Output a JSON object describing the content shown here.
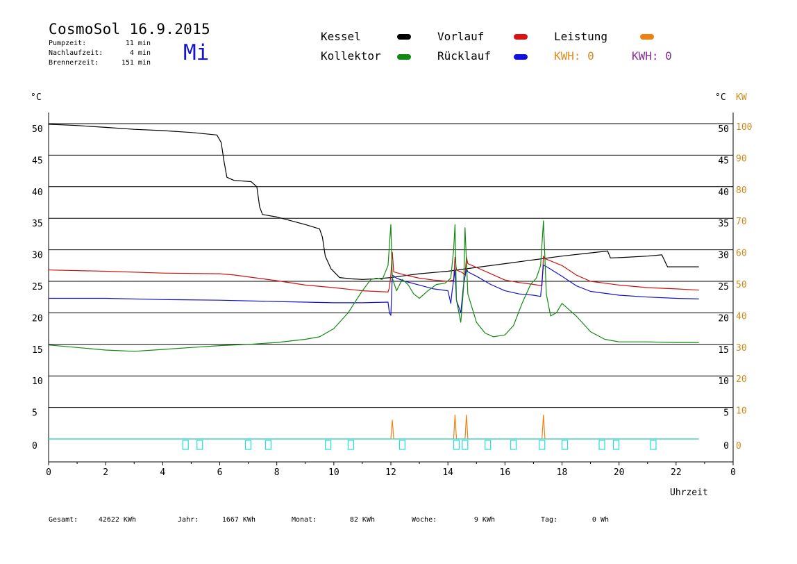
{
  "header": {
    "title": "CosmoSol 16.9.2015",
    "weekday": "Mi",
    "info": [
      {
        "label": "Pumpzeit:",
        "value": "11 min"
      },
      {
        "label": "Nachlaufzeit:",
        "value": "4 min"
      },
      {
        "label": "Brennerzeit:",
        "value": "151 min"
      }
    ]
  },
  "legend": [
    {
      "label": "Kessel",
      "color": "#000000"
    },
    {
      "label": "Vorlauf",
      "color": "#dd1111"
    },
    {
      "label": "Leistung",
      "color": "#f08010"
    },
    {
      "label": "Kollektor",
      "color": "#118811"
    },
    {
      "label": "Rücklauf",
      "color": "#1111dd"
    },
    {
      "label": "KWH: 0",
      "color": "#e08a1a"
    },
    {
      "label": "KWH: 0",
      "color": "#8a2a9a"
    }
  ],
  "axes": {
    "left_unit": "°C",
    "right_unit_c": "°C",
    "right_unit_kw": "KW",
    "x_label": "Uhrzeit"
  },
  "footer": [
    {
      "label": "Gesamt:",
      "value": "42622 KWh"
    },
    {
      "label": "Jahr:",
      "value": "1667 KWh"
    },
    {
      "label": "Monat:",
      "value": "82 KWh"
    },
    {
      "label": "Woche:",
      "value": "9 KWh"
    },
    {
      "label": "Tag:",
      "value": "0 Wh"
    }
  ],
  "chart_data": {
    "type": "line",
    "xlim": [
      0,
      24
    ],
    "ylim": [
      0,
      50
    ],
    "y_ticks": [
      0,
      5,
      10,
      15,
      20,
      25,
      30,
      35,
      40,
      45,
      50
    ],
    "y2_ticks": [
      0,
      10,
      20,
      30,
      40,
      50,
      60,
      70,
      80,
      90,
      100
    ],
    "x_tick_labels": [
      "0",
      "2",
      "4",
      "6",
      "8",
      "10",
      "12",
      "14",
      "16",
      "18",
      "20",
      "22",
      "0"
    ],
    "grid": true,
    "series": [
      {
        "name": "Kessel",
        "color": "#000000",
        "points": [
          [
            0,
            49.9
          ],
          [
            1,
            49.7
          ],
          [
            2,
            49.4
          ],
          [
            3,
            49.1
          ],
          [
            4,
            48.9
          ],
          [
            5,
            48.6
          ],
          [
            5.9,
            48.2
          ],
          [
            6.05,
            47
          ],
          [
            6.15,
            44
          ],
          [
            6.25,
            41.5
          ],
          [
            6.5,
            41
          ],
          [
            7.1,
            40.8
          ],
          [
            7.3,
            40
          ],
          [
            7.4,
            36.8
          ],
          [
            7.5,
            35.6
          ],
          [
            8,
            35.2
          ],
          [
            8.5,
            34.6
          ],
          [
            9,
            34
          ],
          [
            9.5,
            33.3
          ],
          [
            9.6,
            32
          ],
          [
            9.7,
            29
          ],
          [
            9.9,
            27
          ],
          [
            10.2,
            25.6
          ],
          [
            10.6,
            25.4
          ],
          [
            11,
            25.3
          ],
          [
            11.5,
            25.4
          ],
          [
            12,
            25.6
          ],
          [
            12.5,
            25.9
          ],
          [
            13,
            26.2
          ],
          [
            14,
            26.6
          ],
          [
            15,
            27.2
          ],
          [
            16,
            27.8
          ],
          [
            17,
            28.4
          ],
          [
            18,
            29
          ],
          [
            19,
            29.5
          ],
          [
            19.6,
            29.8
          ],
          [
            19.7,
            28.7
          ],
          [
            20.2,
            28.8
          ],
          [
            21,
            29
          ],
          [
            21.5,
            29.2
          ],
          [
            21.7,
            27.3
          ],
          [
            22,
            27.3
          ],
          [
            22.8,
            27.3
          ]
        ]
      },
      {
        "name": "Vorlauf",
        "color": "#cc1111",
        "points": [
          [
            0,
            26.8
          ],
          [
            2,
            26.6
          ],
          [
            4,
            26.3
          ],
          [
            6,
            26.2
          ],
          [
            6.5,
            26
          ],
          [
            7,
            25.7
          ],
          [
            8,
            25.1
          ],
          [
            9,
            24.4
          ],
          [
            10,
            24
          ],
          [
            11,
            23.5
          ],
          [
            11.9,
            23.3
          ],
          [
            11.95,
            24
          ],
          [
            12,
            26
          ],
          [
            12.05,
            29.6
          ],
          [
            12.1,
            26.5
          ],
          [
            12.5,
            26
          ],
          [
            13,
            25.5
          ],
          [
            13.5,
            25.2
          ],
          [
            14,
            25
          ],
          [
            14.2,
            25.2
          ],
          [
            14.25,
            28.8
          ],
          [
            14.3,
            26.8
          ],
          [
            14.5,
            26.4
          ],
          [
            14.6,
            26
          ],
          [
            14.65,
            28.8
          ],
          [
            14.7,
            27.8
          ],
          [
            15,
            27.2
          ],
          [
            15.5,
            26.2
          ],
          [
            16,
            25.2
          ],
          [
            16.5,
            24.8
          ],
          [
            17,
            24.5
          ],
          [
            17.3,
            24.3
          ],
          [
            17.35,
            29
          ],
          [
            17.4,
            28.6
          ],
          [
            18,
            27.5
          ],
          [
            18.5,
            26
          ],
          [
            19,
            25
          ],
          [
            20,
            24.4
          ],
          [
            21,
            24
          ],
          [
            22,
            23.8
          ],
          [
            22.8,
            23.6
          ]
        ]
      },
      {
        "name": "Rücklauf",
        "color": "#1111cc",
        "points": [
          [
            0,
            22.3
          ],
          [
            2,
            22.3
          ],
          [
            4,
            22.1
          ],
          [
            6,
            22
          ],
          [
            8,
            21.8
          ],
          [
            10,
            21.6
          ],
          [
            11,
            21.6
          ],
          [
            11.9,
            21.7
          ],
          [
            11.95,
            20
          ],
          [
            12.0,
            19.6
          ],
          [
            12.05,
            26
          ],
          [
            12.2,
            25.5
          ],
          [
            12.5,
            25
          ],
          [
            13,
            24.4
          ],
          [
            13.5,
            23.8
          ],
          [
            14,
            23.5
          ],
          [
            14.1,
            21.5
          ],
          [
            14.15,
            23.5
          ],
          [
            14.25,
            26.8
          ],
          [
            14.3,
            22
          ],
          [
            14.45,
            20
          ],
          [
            14.55,
            24.5
          ],
          [
            14.65,
            27
          ],
          [
            14.7,
            26.5
          ],
          [
            15,
            25.8
          ],
          [
            15.5,
            24.5
          ],
          [
            16,
            23.5
          ],
          [
            16.5,
            23
          ],
          [
            17,
            22.8
          ],
          [
            17.25,
            22.6
          ],
          [
            17.3,
            25
          ],
          [
            17.35,
            27.6
          ],
          [
            17.5,
            27.2
          ],
          [
            18,
            25.8
          ],
          [
            18.5,
            24.3
          ],
          [
            19,
            23.4
          ],
          [
            20,
            22.8
          ],
          [
            21,
            22.5
          ],
          [
            22,
            22.3
          ],
          [
            22.8,
            22.2
          ]
        ]
      },
      {
        "name": "Kollektor",
        "color": "#118811",
        "points": [
          [
            0,
            14.9
          ],
          [
            1,
            14.5
          ],
          [
            2,
            14.1
          ],
          [
            3,
            13.9
          ],
          [
            4,
            14.2
          ],
          [
            5,
            14.5
          ],
          [
            6,
            14.8
          ],
          [
            7,
            15
          ],
          [
            8,
            15.3
          ],
          [
            9,
            15.8
          ],
          [
            9.5,
            16.2
          ],
          [
            10,
            17.5
          ],
          [
            10.5,
            20
          ],
          [
            11,
            23.5
          ],
          [
            11.3,
            25.3
          ],
          [
            11.5,
            25.5
          ],
          [
            11.7,
            25.3
          ],
          [
            11.9,
            27.5
          ],
          [
            12.0,
            34
          ],
          [
            12.05,
            25.5
          ],
          [
            12.2,
            23.5
          ],
          [
            12.4,
            25.3
          ],
          [
            12.6,
            24.5
          ],
          [
            12.8,
            23
          ],
          [
            13,
            22.3
          ],
          [
            13.3,
            23.5
          ],
          [
            13.6,
            24.5
          ],
          [
            13.9,
            24.7
          ],
          [
            14.1,
            25.5
          ],
          [
            14.2,
            30
          ],
          [
            14.25,
            34
          ],
          [
            14.3,
            22
          ],
          [
            14.45,
            18.5
          ],
          [
            14.55,
            24
          ],
          [
            14.6,
            33.5
          ],
          [
            14.7,
            23
          ],
          [
            15,
            18.5
          ],
          [
            15.3,
            16.8
          ],
          [
            15.6,
            16.2
          ],
          [
            16,
            16.5
          ],
          [
            16.3,
            18
          ],
          [
            16.6,
            21.5
          ],
          [
            16.9,
            24.5
          ],
          [
            17.1,
            25.5
          ],
          [
            17.25,
            27.5
          ],
          [
            17.35,
            34.6
          ],
          [
            17.45,
            23
          ],
          [
            17.6,
            19.5
          ],
          [
            17.8,
            20
          ],
          [
            18,
            21.5
          ],
          [
            18.5,
            19.5
          ],
          [
            19,
            17
          ],
          [
            19.5,
            15.8
          ],
          [
            20,
            15.4
          ],
          [
            21,
            15.4
          ],
          [
            22,
            15.3
          ],
          [
            22.8,
            15.3
          ]
        ]
      },
      {
        "name": "Leistung",
        "color": "#f08010",
        "points": [
          [
            0,
            0
          ],
          [
            12.0,
            0
          ],
          [
            12.05,
            3.0
          ],
          [
            12.1,
            0
          ],
          [
            14.2,
            0
          ],
          [
            14.25,
            3.8
          ],
          [
            14.3,
            0
          ],
          [
            14.6,
            0
          ],
          [
            14.65,
            3.8
          ],
          [
            14.7,
            0
          ],
          [
            17.3,
            0
          ],
          [
            17.35,
            3.8
          ],
          [
            17.4,
            0
          ],
          [
            22.8,
            0
          ]
        ]
      },
      {
        "name": "Pumpe",
        "color": "#22dddd",
        "points": [
          [
            0,
            0
          ],
          [
            22.8,
            0
          ]
        ],
        "markers_x": [
          4.8,
          5.3,
          7.0,
          7.7,
          9.8,
          10.6,
          12.4,
          14.3,
          14.6,
          15.4,
          16.3,
          17.3,
          18.1,
          19.4,
          19.9,
          21.2
        ]
      }
    ]
  }
}
